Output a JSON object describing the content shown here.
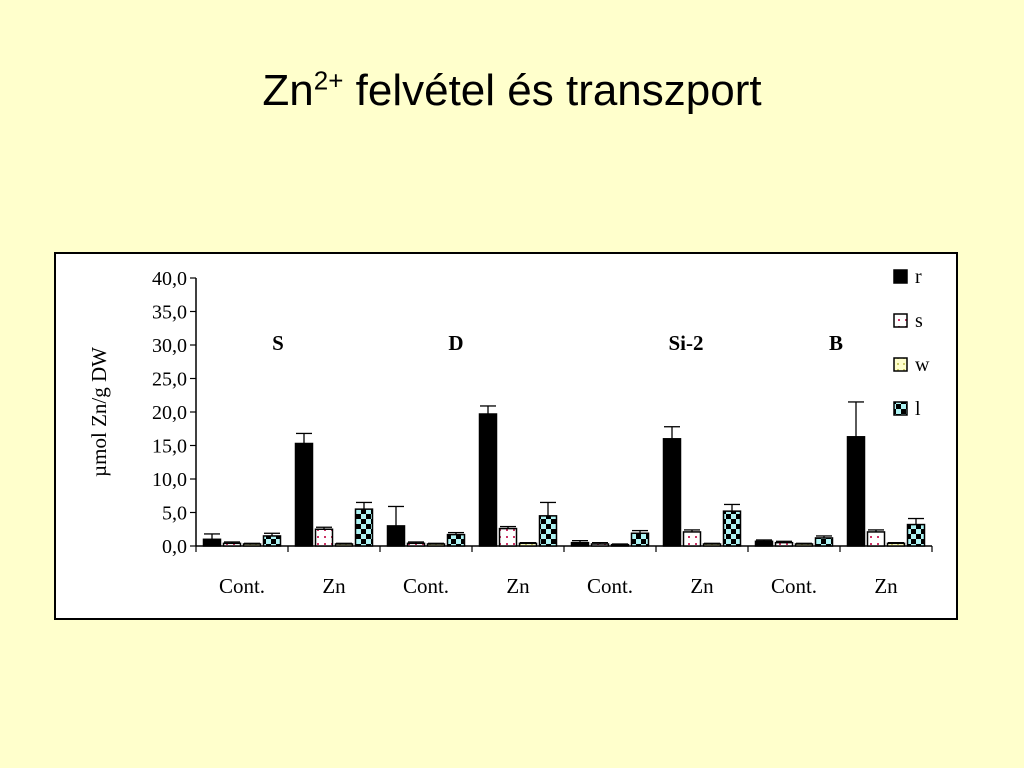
{
  "slide": {
    "title_main": "Zn",
    "title_sup": "2+",
    "title_rest": " felvétel és transzport"
  },
  "chart_data": {
    "type": "bar",
    "title": "",
    "xlabel": "",
    "ylabel": "µmol Zn/g DW",
    "ylim": [
      0,
      40
    ],
    "yticks": [
      "0,0",
      "5,0",
      "10,0",
      "15,0",
      "20,0",
      "25,0",
      "30,0",
      "35,0",
      "40,0"
    ],
    "categories": [
      "Cont.",
      "Zn",
      "Cont.",
      "Zn",
      "Cont.",
      "Zn",
      "Cont.",
      "Zn"
    ],
    "group_labels": [
      "S",
      "D",
      "Si-2",
      "B"
    ],
    "grid": false,
    "legend_position": "top-right",
    "series": [
      {
        "name": "r",
        "pattern": "solid-black",
        "values": [
          1.0,
          15.3,
          3.0,
          19.7,
          0.5,
          16.0,
          0.7,
          16.3
        ],
        "errors": [
          0.8,
          1.5,
          2.9,
          1.2,
          0.3,
          1.8,
          0.2,
          5.2
        ]
      },
      {
        "name": "s",
        "pattern": "dotted-pink",
        "values": [
          0.4,
          2.5,
          0.4,
          2.6,
          0.3,
          2.1,
          0.5,
          2.1
        ],
        "errors": [
          0.2,
          0.3,
          0.2,
          0.3,
          0.2,
          0.3,
          0.2,
          0.3
        ]
      },
      {
        "name": "w",
        "pattern": "yellow-dots",
        "values": [
          0.3,
          0.3,
          0.3,
          0.4,
          0.2,
          0.3,
          0.3,
          0.4
        ],
        "errors": [
          0.1,
          0.1,
          0.1,
          0.1,
          0.1,
          0.1,
          0.1,
          0.1
        ]
      },
      {
        "name": "l",
        "pattern": "checker-cyan",
        "values": [
          1.5,
          5.5,
          1.7,
          4.5,
          1.9,
          5.2,
          1.2,
          3.2
        ],
        "errors": [
          0.4,
          1.0,
          0.3,
          2.0,
          0.4,
          1.0,
          0.3,
          0.9
        ]
      }
    ],
    "colors": {
      "r": "#000000",
      "s_dot": "#cc3366",
      "w_dot": "#cccc66",
      "l_fill": "#aef4f4",
      "l_check": "#000000"
    }
  }
}
